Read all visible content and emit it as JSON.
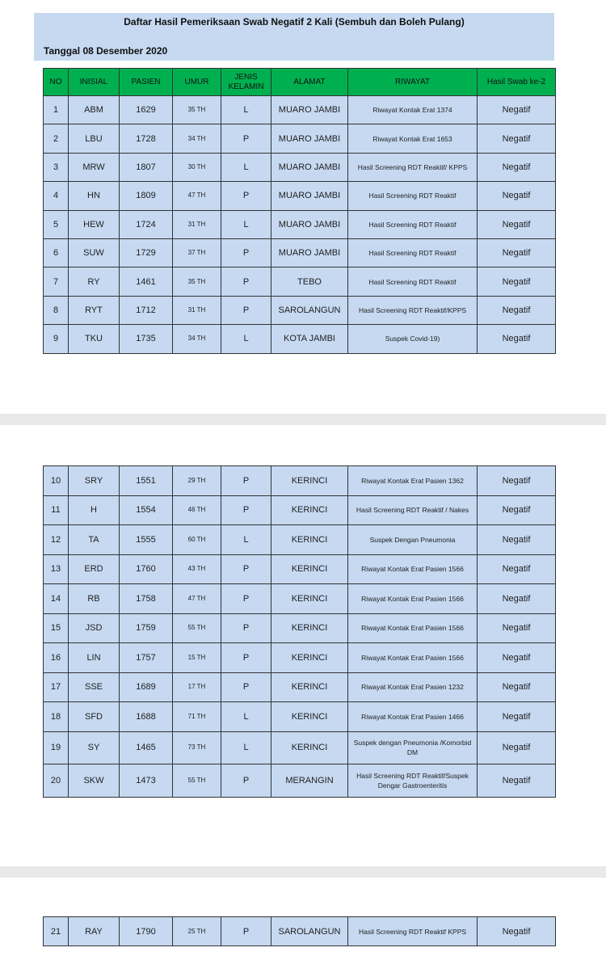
{
  "header": {
    "title": "Daftar Hasil Pemeriksaan Swab Negatif 2 Kali (Sembuh dan Boleh Pulang)",
    "date": "Tanggal 08  Desember  2020"
  },
  "columns": [
    "NO",
    "INISIAL",
    "PASIEN",
    "UMUR",
    "JENIS KELAMIN",
    "ALAMAT",
    "RIWAYAT",
    "Hasil Swab ke-2"
  ],
  "pages": [
    [
      [
        "1",
        "ABM",
        "1629",
        "35 TH",
        "L",
        "MUARO JAMBI",
        "Riwayat Kontak Erat 1374",
        "Negatif"
      ],
      [
        "2",
        "LBU",
        "1728",
        "34 TH",
        "P",
        "MUARO JAMBI",
        "Riwayat Kontak Erat 1653",
        "Negatif"
      ],
      [
        "3",
        "MRW",
        "1807",
        "30 TH",
        "L",
        "MUARO JAMBI",
        "Hasil Screening RDT Reaktif/ KPPS",
        "Negatif"
      ],
      [
        "4",
        "HN",
        "1809",
        "47 TH",
        "P",
        "MUARO JAMBI",
        "Hasil Screening RDT Reaktif",
        "Negatif"
      ],
      [
        "5",
        "HEW",
        "1724",
        "31 TH",
        "L",
        "MUARO JAMBI",
        "Hasil Screening RDT Reaktif",
        "Negatif"
      ],
      [
        "6",
        "SUW",
        "1729",
        "37 TH",
        "P",
        "MUARO JAMBI",
        "Hasil Screening RDT Reaktif",
        "Negatif"
      ],
      [
        "7",
        "RY",
        "1461",
        "35 TH",
        "P",
        "TEBO",
        "Hasil Screening RDT Reaktif",
        "Negatif"
      ],
      [
        "8",
        "RYT",
        "1712",
        "31 TH",
        "P",
        "SAROLANGUN",
        "Hasil Screening RDT Reaktif/KPPS",
        "Negatif"
      ],
      [
        "9",
        "TKU",
        "1735",
        "34 TH",
        "L",
        "KOTA JAMBI",
        "Suspek Covid-19)",
        "Negatif"
      ]
    ],
    [
      [
        "10",
        "SRY",
        "1551",
        "29 TH",
        "P",
        "KERINCI",
        "Riwayat Kontak Erat Pasien 1362",
        "Negatif"
      ],
      [
        "11",
        "H",
        "1554",
        "46  TH",
        "P",
        "KERINCI",
        "Hasil Screening RDT Reaktif / Nakes",
        "Negatif"
      ],
      [
        "12",
        "TA",
        "1555",
        "60 TH",
        "L",
        "KERINCI",
        "Suspek Dengan Pneumonia",
        "Negatif"
      ],
      [
        "13",
        "ERD",
        "1760",
        "43 TH",
        "P",
        "KERINCI",
        "Riwayat Kontak Erat Pasien 1566",
        "Negatif"
      ],
      [
        "14",
        "RB",
        "1758",
        "47 TH",
        "P",
        "KERINCI",
        "Riwayat Kontak Erat Pasien 1566",
        "Negatif"
      ],
      [
        "15",
        "JSD",
        "1759",
        "55 TH",
        "P",
        "KERINCI",
        "Riwayat Kontak Erat Pasien 1566",
        "Negatif"
      ],
      [
        "16",
        "LIN",
        "1757",
        "15 TH",
        "P",
        "KERINCI",
        "Riwayat Kontak Erat Pasien 1566",
        "Negatif"
      ],
      [
        "17",
        "SSE",
        "1689",
        "17 TH",
        "P",
        "KERINCI",
        "Riwayat Kontak Erat Pasien 1232",
        "Negatif"
      ],
      [
        "18",
        "SFD",
        "1688",
        "71 TH",
        "L",
        "KERINCI",
        "Riwayat Kontak Erat Pasien 1466",
        "Negatif"
      ],
      [
        "19",
        "SY",
        "1465",
        "73 TH",
        "L",
        "KERINCI",
        "Suspek dengan Pneumonia /Komorbid DM",
        "Negatif"
      ],
      [
        "20",
        "SKW",
        "1473",
        "55 TH",
        "P",
        "MERANGIN",
        "Hasil Screening RDT Reaktif/Suspek Dengar Gastroenteritis",
        "Negatif"
      ]
    ],
    [
      [
        "21",
        "RAY",
        "1790",
        "25 TH",
        "P",
        "SAROLANGUN",
        "Hasil Screening RDT Reaktif KPPS",
        "Negatif"
      ]
    ]
  ]
}
